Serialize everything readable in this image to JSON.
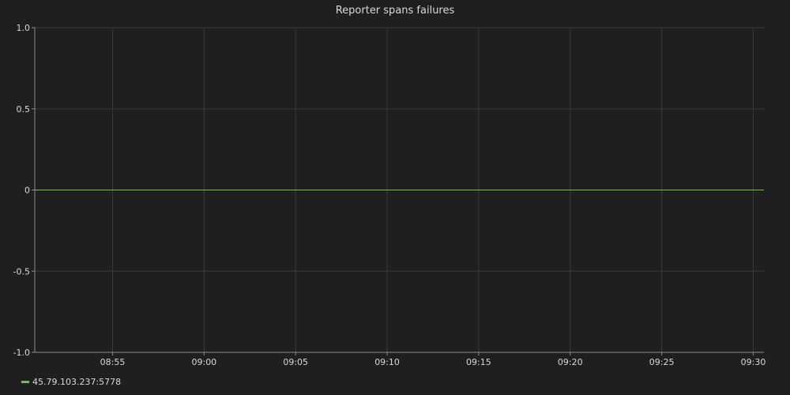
{
  "chart_data": {
    "type": "line",
    "title": "Reporter spans failures",
    "xlabel": "",
    "ylabel": "",
    "ylim": [
      -1.0,
      1.0
    ],
    "yticks": [
      "1.0",
      "0.5",
      "0",
      "-0.5",
      "-1.0"
    ],
    "ytick_values": [
      1.0,
      0.5,
      0,
      -0.5,
      -1.0
    ],
    "xlim": [
      "08:50:45",
      "09:30:35"
    ],
    "xticks": [
      "08:55",
      "09:00",
      "09:05",
      "09:10",
      "09:15",
      "09:20",
      "09:25",
      "09:30"
    ],
    "grid": true,
    "legend_position": "bottom-left",
    "series": [
      {
        "name": "45.79.103.237:5778",
        "color": "#7eb26d",
        "x": [
          "08:50:45",
          "08:55",
          "09:00",
          "09:05",
          "09:10",
          "09:15",
          "09:20",
          "09:25",
          "09:30:35"
        ],
        "values": [
          0,
          0,
          0,
          0,
          0,
          0,
          0,
          0,
          0
        ]
      }
    ]
  }
}
